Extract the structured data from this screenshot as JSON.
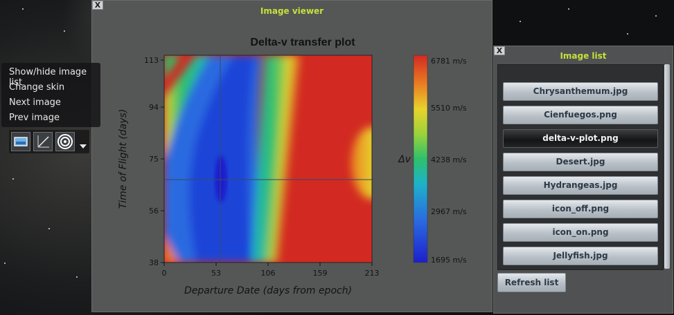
{
  "viewer": {
    "title": "Image viewer",
    "close_label": "X"
  },
  "plot": {
    "title": "Delta-v transfer plot",
    "xlabel": "Departure Date (days from epoch)",
    "ylabel": "Time of Flight (days)",
    "colorbar_label": "Δv",
    "x_ticks": [
      "0",
      "53",
      "106",
      "159",
      "213"
    ],
    "y_ticks": [
      "113",
      "94",
      "75",
      "56",
      "38"
    ],
    "cb_ticks": [
      "6781 m/s",
      "5510 m/s",
      "4238 m/s",
      "2967 m/s",
      "1695 m/s"
    ]
  },
  "chart_data": {
    "type": "heatmap",
    "title": "Delta-v transfer plot",
    "xlabel": "Departure Date (days from epoch)",
    "ylabel": "Time of Flight (days)",
    "xlim": [
      0,
      213
    ],
    "ylim": [
      38,
      113
    ],
    "zlim": [
      1695,
      6781
    ],
    "zunit": "m/s",
    "minimum_marker": {
      "x": 57,
      "y": 67
    }
  },
  "menu": {
    "items": [
      "Show/hide image list",
      "Change skin",
      "Next image",
      "Prev image"
    ]
  },
  "toolbar": {
    "icons": [
      "image-icon",
      "graph-icon",
      "target-icon"
    ],
    "dropdown": "dropdown-arrow-icon"
  },
  "image_list": {
    "title": "Image list",
    "close_label": "X",
    "files": [
      "Chrysanthemum.jpg",
      "Cienfuegos.png",
      "delta-v-plot.png",
      "Desert.jpg",
      "Hydrangeas.jpg",
      "icon_off.png",
      "icon_on.png",
      "Jellyfish.jpg"
    ],
    "selected": "delta-v-plot.png",
    "refresh_label": "Refresh list"
  },
  "colors": {
    "title_accent": "#c6e03a",
    "high": "#d22a22",
    "low": "#1d1fcc"
  }
}
